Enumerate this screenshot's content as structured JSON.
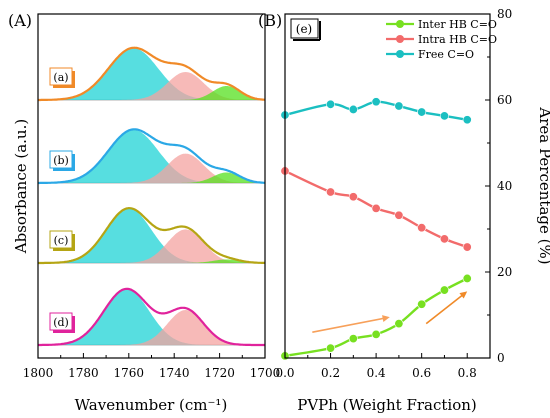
{
  "figure": {
    "panel_a_label": "(A)",
    "panel_b_label": "(B)"
  },
  "chart_data": [
    {
      "type": "area",
      "panel": "(A)",
      "xlabel": "Wavenumber (cm⁻¹)",
      "ylabel": "Absorbance (a.u.)",
      "xlim": [
        1800,
        1700
      ],
      "x_ticks": [
        "1800",
        "1780",
        "1760",
        "1740",
        "1720",
        "1700"
      ],
      "x_reversed": true,
      "grid": false,
      "colors": {
        "free_band": "#1fd3d6",
        "intra_band": "#f4a3a0",
        "inter_band": "#55e01f"
      },
      "spectra": [
        {
          "label": "(a)",
          "color": "#f08a28",
          "bands": [
            {
              "center": 1758,
              "height": 0.74,
              "width": 11
            },
            {
              "center": 1735,
              "height": 0.4,
              "width": 8
            },
            {
              "center": 1717,
              "height": 0.2,
              "width": 6
            }
          ]
        },
        {
          "label": "(b)",
          "color": "#2ba8e6",
          "bands": [
            {
              "center": 1758,
              "height": 0.76,
              "width": 11
            },
            {
              "center": 1735,
              "height": 0.42,
              "width": 8
            },
            {
              "center": 1717,
              "height": 0.15,
              "width": 6
            }
          ]
        },
        {
          "label": "(c)",
          "color": "#b5a514",
          "bands": [
            {
              "center": 1760,
              "height": 0.78,
              "width": 10
            },
            {
              "center": 1735,
              "height": 0.48,
              "width": 8
            },
            {
              "center": 1717,
              "height": 0.05,
              "width": 6
            }
          ]
        },
        {
          "label": "(d)",
          "color": "#e0239c",
          "bands": [
            {
              "center": 1761,
              "height": 0.8,
              "width": 10
            },
            {
              "center": 1735,
              "height": 0.5,
              "width": 8
            }
          ]
        }
      ]
    },
    {
      "type": "line",
      "panel": "(B)",
      "inset_label": "(e)",
      "xlabel": "PVPh (Weight Fraction)",
      "ylabel": "Area Percentage (%)",
      "xlim": [
        0.0,
        0.9
      ],
      "ylim": [
        0,
        80
      ],
      "x_ticks": [
        "0.0",
        "0.2",
        "0.4",
        "0.6",
        "0.8"
      ],
      "y_ticks": [
        "0",
        "20",
        "40",
        "60",
        "80"
      ],
      "grid": false,
      "legend_position": "top-right",
      "x": [
        0.0,
        0.2,
        0.3,
        0.4,
        0.5,
        0.6,
        0.7,
        0.8
      ],
      "series": [
        {
          "name": "Inter HB C=O",
          "color": "#77e020",
          "values": [
            0.5,
            2.3,
            4.5,
            5.5,
            8.0,
            12.5,
            15.8,
            18.5
          ]
        },
        {
          "name": "Intra HB C=O",
          "color": "#f26b6b",
          "values": [
            43.5,
            38.6,
            37.5,
            34.8,
            33.2,
            30.3,
            27.7,
            25.8
          ]
        },
        {
          "name": "Free C=O",
          "color": "#1bbfc1",
          "values": [
            56.5,
            59.0,
            57.8,
            59.6,
            58.6,
            57.2,
            56.3,
            55.4
          ]
        }
      ],
      "annotations": [
        {
          "type": "arrow",
          "color": "#f7a05a",
          "from": [
            0.12,
            6
          ],
          "to": [
            0.46,
            9.5
          ]
        },
        {
          "type": "arrow",
          "color": "#f08a28",
          "from": [
            0.62,
            8
          ],
          "to": [
            0.8,
            15.5
          ]
        }
      ]
    }
  ]
}
